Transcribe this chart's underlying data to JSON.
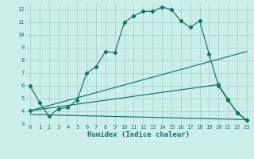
{
  "xlabel": "Humidex (Indice chaleur)",
  "bg_color": "#cceee8",
  "grid_color": "#aad8d0",
  "line_color": "#1a706a",
  "xlim": [
    -0.5,
    23.5
  ],
  "ylim": [
    3,
    12.5
  ],
  "yticks": [
    3,
    4,
    5,
    6,
    7,
    8,
    9,
    10,
    11,
    12
  ],
  "xticks": [
    0,
    1,
    2,
    3,
    4,
    5,
    6,
    7,
    8,
    9,
    10,
    11,
    12,
    13,
    14,
    15,
    16,
    17,
    18,
    19,
    20,
    21,
    22,
    23
  ],
  "curve1_x": [
    0,
    1,
    2,
    3,
    4,
    5,
    6,
    7,
    8,
    9,
    10,
    11,
    12,
    13,
    14,
    15,
    16,
    17,
    18,
    19,
    20,
    21,
    22,
    23
  ],
  "curve1_y": [
    6.0,
    4.7,
    3.6,
    4.2,
    4.3,
    4.9,
    7.0,
    7.5,
    8.7,
    8.6,
    11.0,
    11.5,
    11.85,
    11.85,
    12.2,
    12.0,
    11.1,
    10.6,
    11.1,
    8.5,
    6.0,
    4.9,
    3.9,
    3.3
  ],
  "curve2_x": [
    0,
    23
  ],
  "curve2_y": [
    4.05,
    8.7
  ],
  "curve3_x": [
    0,
    23
  ],
  "curve3_y": [
    3.75,
    3.35
  ],
  "curve4_x": [
    0,
    20,
    21,
    22,
    23
  ],
  "curve4_y": [
    4.05,
    6.1,
    4.95,
    3.85,
    3.3
  ]
}
